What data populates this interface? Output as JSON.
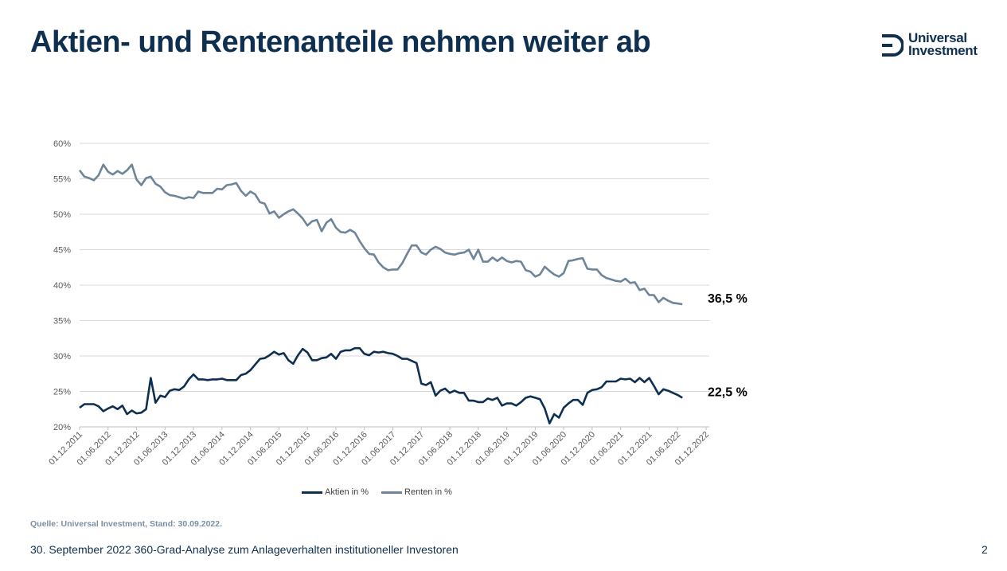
{
  "slide": {
    "title": "Aktien- und Rentenanteile nehmen weiter ab",
    "logo": {
      "line1": "Universal",
      "line2": "Investment",
      "color": "#0e2f4f"
    },
    "source": "Quelle: Universal Investment, Stand: 30.09.2022.",
    "footer": "30. September 2022 360-Grad-Analyse zum Anlageverhalten institutioneller Investoren",
    "page_number": "2"
  },
  "chart_data": {
    "type": "line",
    "title": "",
    "xlabel": "",
    "ylabel": "",
    "ylim": [
      20,
      60
    ],
    "yticks": [
      "20%",
      "25%",
      "30%",
      "35%",
      "40%",
      "45%",
      "50%",
      "55%",
      "60%"
    ],
    "xticks": [
      "01.12.2011",
      "01.06.2012",
      "01.12.2012",
      "01.06.2013",
      "01.12.2013",
      "01.06.2014",
      "01.12.2014",
      "01.06.2015",
      "01.12.2015",
      "01.06.2016",
      "01.12.2016",
      "01.06.2017",
      "01.12.2017",
      "01.06.2018",
      "01.12.2018",
      "01.06.2019",
      "01.12.2019",
      "01.06.2020",
      "01.12.2020",
      "01.06.2021",
      "01.12.2021",
      "01.06.2022",
      "01.12.2022"
    ],
    "x_range": [
      "01.12.2011",
      "01.12.2022"
    ],
    "grid": true,
    "legend": "bottom",
    "series": [
      {
        "name": "Aktien in %",
        "color": "#0e2f4f",
        "end_label": "22,5 %",
        "points": [
          [
            "2011-12",
            22.7
          ],
          [
            "2012-01",
            23.2
          ],
          [
            "2012-02",
            23.2
          ],
          [
            "2012-03",
            23.2
          ],
          [
            "2012-04",
            22.9
          ],
          [
            "2012-05",
            22.2
          ],
          [
            "2012-06",
            22.6
          ],
          [
            "2012-07",
            22.9
          ],
          [
            "2012-08",
            22.5
          ],
          [
            "2012-09",
            23.0
          ],
          [
            "2012-10",
            21.8
          ],
          [
            "2012-11",
            22.3
          ],
          [
            "2012-12",
            21.9
          ],
          [
            "2013-01",
            22.0
          ],
          [
            "2013-02",
            22.5
          ],
          [
            "2013-03",
            26.9
          ],
          [
            "2013-04",
            23.4
          ],
          [
            "2013-05",
            24.4
          ],
          [
            "2013-06",
            24.2
          ],
          [
            "2013-07",
            25.1
          ],
          [
            "2013-08",
            25.3
          ],
          [
            "2013-09",
            25.2
          ],
          [
            "2013-10",
            25.7
          ],
          [
            "2013-11",
            26.7
          ],
          [
            "2013-12",
            27.4
          ],
          [
            "2014-01",
            26.7
          ],
          [
            "2014-02",
            26.7
          ],
          [
            "2014-03",
            26.6
          ],
          [
            "2014-04",
            26.7
          ],
          [
            "2014-05",
            26.7
          ],
          [
            "2014-06",
            26.8
          ],
          [
            "2014-07",
            26.6
          ],
          [
            "2014-08",
            26.6
          ],
          [
            "2014-09",
            26.6
          ],
          [
            "2014-10",
            27.3
          ],
          [
            "2014-11",
            27.5
          ],
          [
            "2014-12",
            28.0
          ],
          [
            "2015-01",
            28.8
          ],
          [
            "2015-02",
            29.6
          ],
          [
            "2015-03",
            29.7
          ],
          [
            "2015-04",
            30.1
          ],
          [
            "2015-05",
            30.6
          ],
          [
            "2015-06",
            30.2
          ],
          [
            "2015-07",
            30.4
          ],
          [
            "2015-08",
            29.4
          ],
          [
            "2015-09",
            28.9
          ],
          [
            "2015-10",
            30.1
          ],
          [
            "2015-11",
            31.0
          ],
          [
            "2015-12",
            30.5
          ],
          [
            "2016-01",
            29.4
          ],
          [
            "2016-02",
            29.4
          ],
          [
            "2016-03",
            29.7
          ],
          [
            "2016-04",
            29.8
          ],
          [
            "2016-05",
            30.3
          ],
          [
            "2016-06",
            29.6
          ],
          [
            "2016-07",
            30.6
          ],
          [
            "2016-08",
            30.8
          ],
          [
            "2016-09",
            30.8
          ],
          [
            "2016-10",
            31.1
          ],
          [
            "2016-11",
            31.1
          ],
          [
            "2016-12",
            30.3
          ],
          [
            "2017-01",
            30.1
          ],
          [
            "2017-02",
            30.6
          ],
          [
            "2017-03",
            30.5
          ],
          [
            "2017-04",
            30.6
          ],
          [
            "2017-05",
            30.4
          ],
          [
            "2017-06",
            30.3
          ],
          [
            "2017-07",
            30.0
          ],
          [
            "2017-08",
            29.6
          ],
          [
            "2017-09",
            29.6
          ],
          [
            "2017-10",
            29.3
          ],
          [
            "2017-11",
            29.0
          ],
          [
            "2017-12",
            26.1
          ],
          [
            "2018-01",
            25.9
          ],
          [
            "2018-02",
            26.3
          ],
          [
            "2018-03",
            24.4
          ],
          [
            "2018-04",
            25.1
          ],
          [
            "2018-05",
            25.4
          ],
          [
            "2018-06",
            24.8
          ],
          [
            "2018-07",
            25.1
          ],
          [
            "2018-08",
            24.8
          ],
          [
            "2018-09",
            24.8
          ],
          [
            "2018-10",
            23.7
          ],
          [
            "2018-11",
            23.7
          ],
          [
            "2018-12",
            23.5
          ],
          [
            "2019-01",
            23.5
          ],
          [
            "2019-02",
            24.0
          ],
          [
            "2019-03",
            23.8
          ],
          [
            "2019-04",
            24.1
          ],
          [
            "2019-05",
            23.0
          ],
          [
            "2019-06",
            23.3
          ],
          [
            "2019-07",
            23.3
          ],
          [
            "2019-08",
            23.0
          ],
          [
            "2019-09",
            23.5
          ],
          [
            "2019-10",
            24.1
          ],
          [
            "2019-11",
            24.3
          ],
          [
            "2019-12",
            24.1
          ],
          [
            "2020-01",
            23.9
          ],
          [
            "2020-02",
            22.6
          ],
          [
            "2020-03",
            20.5
          ],
          [
            "2020-04",
            21.8
          ],
          [
            "2020-05",
            21.3
          ],
          [
            "2020-06",
            22.7
          ],
          [
            "2020-07",
            23.3
          ],
          [
            "2020-08",
            23.8
          ],
          [
            "2020-09",
            23.8
          ],
          [
            "2020-10",
            23.1
          ],
          [
            "2020-11",
            24.8
          ],
          [
            "2020-12",
            25.2
          ],
          [
            "2021-01",
            25.3
          ],
          [
            "2021-02",
            25.6
          ],
          [
            "2021-03",
            26.4
          ],
          [
            "2021-04",
            26.4
          ],
          [
            "2021-05",
            26.4
          ],
          [
            "2021-06",
            26.8
          ],
          [
            "2021-07",
            26.7
          ],
          [
            "2021-08",
            26.8
          ],
          [
            "2021-09",
            26.3
          ],
          [
            "2021-10",
            26.9
          ],
          [
            "2021-11",
            26.3
          ],
          [
            "2021-12",
            26.9
          ],
          [
            "2022-01",
            25.8
          ],
          [
            "2022-02",
            24.6
          ],
          [
            "2022-03",
            25.3
          ],
          [
            "2022-04",
            25.1
          ],
          [
            "2022-05",
            24.8
          ],
          [
            "2022-06",
            24.5
          ],
          [
            "2022-07",
            24.1
          ]
        ]
      },
      {
        "name": "Renten in %",
        "color": "#6e8599",
        "end_label": "36,5 %",
        "points": [
          [
            "2011-12",
            56.2
          ],
          [
            "2012-01",
            55.3
          ],
          [
            "2012-02",
            55.1
          ],
          [
            "2012-03",
            54.8
          ],
          [
            "2012-04",
            55.5
          ],
          [
            "2012-05",
            57.0
          ],
          [
            "2012-06",
            56.0
          ],
          [
            "2012-07",
            55.6
          ],
          [
            "2012-08",
            56.1
          ],
          [
            "2012-09",
            55.7
          ],
          [
            "2012-10",
            56.2
          ],
          [
            "2012-11",
            57.0
          ],
          [
            "2012-12",
            54.9
          ],
          [
            "2013-01",
            54.1
          ],
          [
            "2013-02",
            55.1
          ],
          [
            "2013-03",
            55.3
          ],
          [
            "2013-04",
            54.3
          ],
          [
            "2013-05",
            53.9
          ],
          [
            "2013-06",
            53.1
          ],
          [
            "2013-07",
            52.7
          ],
          [
            "2013-08",
            52.6
          ],
          [
            "2013-09",
            52.4
          ],
          [
            "2013-10",
            52.2
          ],
          [
            "2013-11",
            52.4
          ],
          [
            "2013-12",
            52.3
          ],
          [
            "2014-01",
            53.2
          ],
          [
            "2014-02",
            53.0
          ],
          [
            "2014-03",
            53.0
          ],
          [
            "2014-04",
            53.0
          ],
          [
            "2014-05",
            53.6
          ],
          [
            "2014-06",
            53.5
          ],
          [
            "2014-07",
            54.1
          ],
          [
            "2014-08",
            54.2
          ],
          [
            "2014-09",
            54.4
          ],
          [
            "2014-10",
            53.3
          ],
          [
            "2014-11",
            52.6
          ],
          [
            "2014-12",
            53.2
          ],
          [
            "2015-01",
            52.8
          ],
          [
            "2015-02",
            51.7
          ],
          [
            "2015-03",
            51.5
          ],
          [
            "2015-04",
            50.1
          ],
          [
            "2015-05",
            50.4
          ],
          [
            "2015-06",
            49.5
          ],
          [
            "2015-07",
            50.0
          ],
          [
            "2015-08",
            50.4
          ],
          [
            "2015-09",
            50.7
          ],
          [
            "2015-10",
            50.1
          ],
          [
            "2015-11",
            49.4
          ],
          [
            "2015-12",
            48.4
          ],
          [
            "2016-01",
            49.0
          ],
          [
            "2016-02",
            49.2
          ],
          [
            "2016-03",
            47.6
          ],
          [
            "2016-04",
            48.8
          ],
          [
            "2016-05",
            49.3
          ],
          [
            "2016-06",
            48.1
          ],
          [
            "2016-07",
            47.5
          ],
          [
            "2016-08",
            47.4
          ],
          [
            "2016-09",
            47.8
          ],
          [
            "2016-10",
            47.4
          ],
          [
            "2016-11",
            46.2
          ],
          [
            "2016-12",
            45.2
          ],
          [
            "2017-01",
            44.4
          ],
          [
            "2017-02",
            44.3
          ],
          [
            "2017-03",
            43.2
          ],
          [
            "2017-04",
            42.5
          ],
          [
            "2017-05",
            42.1
          ],
          [
            "2017-06",
            42.2
          ],
          [
            "2017-07",
            42.2
          ],
          [
            "2017-08",
            43.1
          ],
          [
            "2017-09",
            44.4
          ],
          [
            "2017-10",
            45.6
          ],
          [
            "2017-11",
            45.6
          ],
          [
            "2017-12",
            44.6
          ],
          [
            "2018-01",
            44.3
          ],
          [
            "2018-02",
            45.0
          ],
          [
            "2018-03",
            45.4
          ],
          [
            "2018-04",
            45.1
          ],
          [
            "2018-05",
            44.6
          ],
          [
            "2018-06",
            44.4
          ],
          [
            "2018-07",
            44.3
          ],
          [
            "2018-08",
            44.5
          ],
          [
            "2018-09",
            44.6
          ],
          [
            "2018-10",
            45.0
          ],
          [
            "2018-11",
            43.7
          ],
          [
            "2018-12",
            45.0
          ],
          [
            "2019-01",
            43.3
          ],
          [
            "2019-02",
            43.3
          ],
          [
            "2019-03",
            43.9
          ],
          [
            "2019-04",
            43.4
          ],
          [
            "2019-05",
            43.9
          ],
          [
            "2019-06",
            43.4
          ],
          [
            "2019-07",
            43.2
          ],
          [
            "2019-08",
            43.4
          ],
          [
            "2019-09",
            43.3
          ],
          [
            "2019-10",
            42.1
          ],
          [
            "2019-11",
            41.9
          ],
          [
            "2019-12",
            41.2
          ],
          [
            "2020-01",
            41.5
          ],
          [
            "2020-02",
            42.6
          ],
          [
            "2020-03",
            42.0
          ],
          [
            "2020-04",
            41.5
          ],
          [
            "2020-05",
            41.2
          ],
          [
            "2020-06",
            41.7
          ],
          [
            "2020-07",
            43.4
          ],
          [
            "2020-08",
            43.5
          ],
          [
            "2020-09",
            43.7
          ],
          [
            "2020-10",
            43.8
          ],
          [
            "2020-11",
            42.3
          ],
          [
            "2020-12",
            42.2
          ],
          [
            "2021-01",
            42.2
          ],
          [
            "2021-02",
            41.4
          ],
          [
            "2021-03",
            41.0
          ],
          [
            "2021-04",
            40.8
          ],
          [
            "2021-05",
            40.6
          ],
          [
            "2021-06",
            40.5
          ],
          [
            "2021-07",
            40.9
          ],
          [
            "2021-08",
            40.3
          ],
          [
            "2021-09",
            40.4
          ],
          [
            "2021-10",
            39.3
          ],
          [
            "2021-11",
            39.5
          ],
          [
            "2021-12",
            38.6
          ],
          [
            "2022-01",
            38.6
          ],
          [
            "2022-02",
            37.6
          ],
          [
            "2022-03",
            38.2
          ],
          [
            "2022-04",
            37.8
          ],
          [
            "2022-05",
            37.5
          ],
          [
            "2022-06",
            37.4
          ],
          [
            "2022-07",
            37.3
          ]
        ]
      }
    ]
  }
}
